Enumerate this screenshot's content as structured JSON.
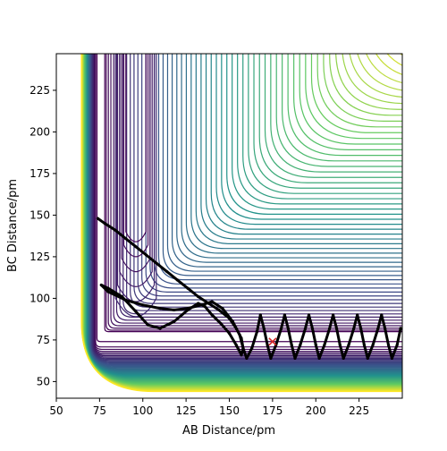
{
  "chart_data": {
    "type": "contour",
    "title": "",
    "xlabel": "AB Distance/pm",
    "ylabel": "BC Distance/pm",
    "xlim": [
      50,
      250
    ],
    "ylim": [
      40,
      247
    ],
    "x_ticks": [
      50,
      75,
      100,
      125,
      150,
      175,
      200,
      225
    ],
    "y_ticks": [
      50,
      75,
      100,
      125,
      150,
      175,
      200,
      225
    ],
    "grid": false,
    "legend": "none",
    "colormap": [
      "#440154",
      "#3b528b",
      "#21918c",
      "#5ec962",
      "#fde725"
    ],
    "contour_levels": 60,
    "trajectory_color": "#000000",
    "trajectory": [
      [
        74,
        148
      ],
      [
        78,
        145
      ],
      [
        84,
        141
      ],
      [
        90,
        136
      ],
      [
        96,
        131
      ],
      [
        102,
        126
      ],
      [
        108,
        121
      ],
      [
        114,
        116
      ],
      [
        120,
        111
      ],
      [
        126,
        106
      ],
      [
        132,
        101
      ],
      [
        138,
        97
      ],
      [
        144,
        93
      ],
      [
        150,
        88
      ],
      [
        154,
        82
      ],
      [
        157,
        76
      ],
      [
        158,
        70
      ],
      [
        157,
        66
      ],
      [
        154,
        72
      ],
      [
        150,
        79
      ],
      [
        145,
        85
      ],
      [
        140,
        90
      ],
      [
        136,
        95
      ],
      [
        132,
        97
      ],
      [
        126,
        93
      ],
      [
        118,
        86
      ],
      [
        110,
        82
      ],
      [
        103,
        84
      ],
      [
        96,
        92
      ],
      [
        88,
        101
      ],
      [
        80,
        106
      ],
      [
        76,
        108
      ],
      [
        80,
        104
      ],
      [
        90,
        99
      ],
      [
        100,
        96
      ],
      [
        110,
        94
      ],
      [
        118,
        93
      ],
      [
        126,
        94
      ],
      [
        134,
        96
      ],
      [
        140,
        98
      ],
      [
        146,
        94
      ],
      [
        152,
        86
      ],
      [
        156,
        78
      ],
      [
        158,
        70
      ],
      [
        160,
        64
      ],
      [
        163,
        70
      ],
      [
        166,
        80
      ],
      [
        168,
        90
      ],
      [
        170,
        82
      ],
      [
        172,
        72
      ],
      [
        174,
        64
      ],
      [
        177,
        72
      ],
      [
        180,
        82
      ],
      [
        182,
        90
      ],
      [
        184,
        82
      ],
      [
        186,
        72
      ],
      [
        188,
        64
      ],
      [
        191,
        72
      ],
      [
        194,
        82
      ],
      [
        196,
        90
      ],
      [
        198,
        82
      ],
      [
        200,
        72
      ],
      [
        202,
        64
      ],
      [
        205,
        72
      ],
      [
        208,
        82
      ],
      [
        210,
        90
      ],
      [
        212,
        82
      ],
      [
        214,
        72
      ],
      [
        216,
        64
      ],
      [
        219,
        72
      ],
      [
        222,
        82
      ],
      [
        224,
        90
      ],
      [
        226,
        82
      ],
      [
        228,
        72
      ],
      [
        230,
        64
      ],
      [
        233,
        72
      ],
      [
        236,
        82
      ],
      [
        238,
        90
      ],
      [
        240,
        82
      ],
      [
        242,
        72
      ],
      [
        244,
        64
      ],
      [
        247,
        72
      ],
      [
        249,
        82
      ]
    ],
    "marker": {
      "x": 175,
      "y": 74,
      "symbol": "x",
      "color": "#d62728"
    }
  }
}
